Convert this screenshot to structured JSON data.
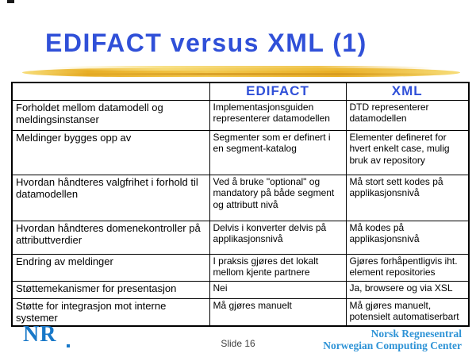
{
  "slide": {
    "title": "EDIFACT versus XML (1)",
    "slide_number_label": "Slide 16",
    "logo_text": "NR",
    "footer": {
      "line1": "Norsk Regnesentral",
      "line2": "Norwegian Computing Center"
    }
  },
  "table": {
    "columns": [
      "",
      "EDIFACT",
      "XML"
    ],
    "rows": [
      {
        "feature": "Forholdet mellom datamodell og meldingsinstanser",
        "edifact": "Implementasjonsguiden representerer datamodellen",
        "xml": "DTD representerer datamodellen"
      },
      {
        "feature": "Meldinger bygges opp av",
        "edifact": "Segmenter som er definert i en segment-katalog",
        "xml": "Elementer defineret for hvert enkelt case, mulig bruk av repository"
      },
      {
        "feature": "Hvordan håndteres valgfrihet i forhold til datamodellen",
        "edifact": "Ved å bruke \"optional\" og mandatory på både segment og attributt nivå",
        "xml": "Må stort sett kodes på applikasjonsnivå"
      },
      {
        "feature": "Hvordan håndteres domenekontroller på attributtverdier",
        "edifact": "Delvis i konverter delvis på applikasjonsnivå",
        "xml": "Må kodes på applikasjonsnivå"
      },
      {
        "feature": "Endring av meldinger",
        "edifact": "I praksis gjøres det lokalt mellom kjente partnere",
        "xml": "Gjøres forhåpentligvis iht. element repositories"
      },
      {
        "feature": "Støttemekanismer for presentasjon",
        "edifact": "Nei",
        "xml": "Ja, browsere og via XSL"
      },
      {
        "feature": "Støtte for integrasjon mot interne systemer",
        "edifact": "Må gjøres manuelt",
        "xml": "Må gjøres manuelt, potensielt automatiserbart"
      }
    ]
  },
  "colors": {
    "title_blue": "#3050d8",
    "footer_blue": "#2e93d6",
    "logo_blue": "#1878c8",
    "slide_gray": "#404040",
    "gold_dark": "#e8ae25",
    "gold_mid": "#f3c94e",
    "gold_light": "#f7dd7a"
  }
}
